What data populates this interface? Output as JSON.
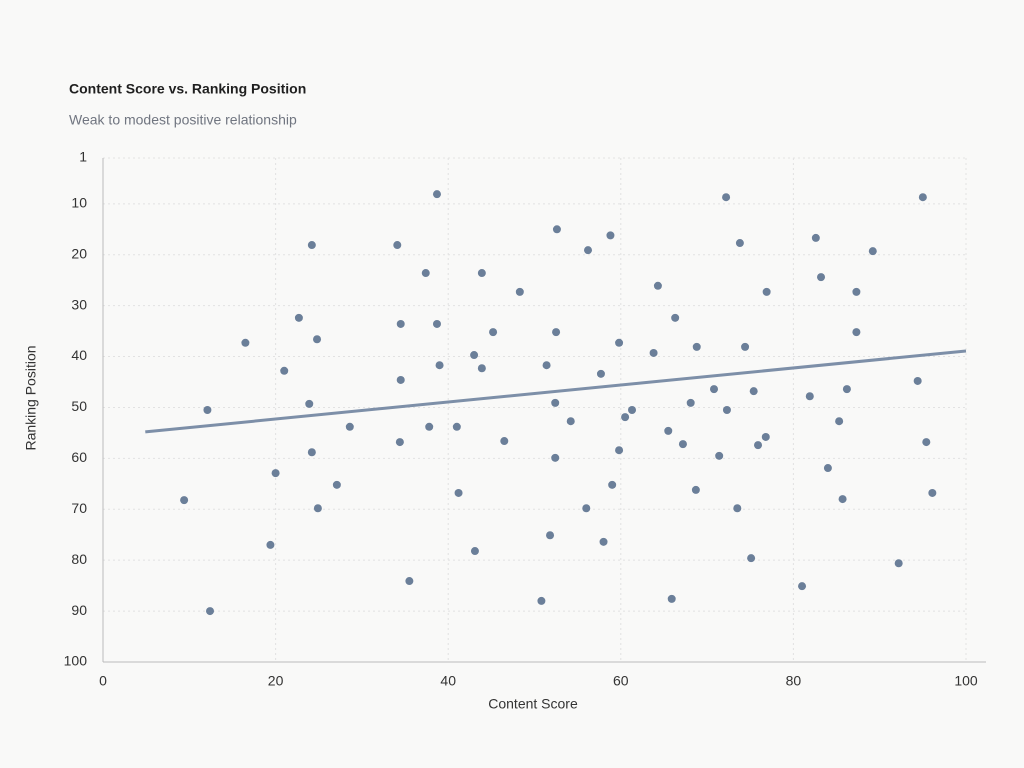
{
  "chart_data": {
    "type": "scatter",
    "title": "Content Score vs. Ranking Position",
    "subtitle": "Weak to modest positive relationship",
    "x_label": "Content Score",
    "y_label": "Ranking Position",
    "color": "#6b7f99",
    "grid": true,
    "y_inverted": true,
    "xlim": [
      0,
      100
    ],
    "xticks": [
      0,
      20,
      40,
      60,
      80,
      100
    ],
    "ylim": [
      1,
      100
    ],
    "yticks": [
      1,
      10,
      20,
      30,
      40,
      50,
      60,
      70,
      80,
      90,
      100
    ],
    "x": [
      9.4,
      12.1,
      12.4,
      16.5,
      19.4,
      20.0,
      21.0,
      22.7,
      23.9,
      24.2,
      24.2,
      24.8,
      24.9,
      27.1,
      28.6,
      34.1,
      34.5,
      34.5,
      34.4,
      35.5,
      37.4,
      37.8,
      38.7,
      38.7,
      39.0,
      41.0,
      41.2,
      43.0,
      43.1,
      43.9,
      43.9,
      45.2,
      46.5,
      48.3,
      50.8,
      51.4,
      51.8,
      52.4,
      52.5,
      52.4,
      52.6,
      54.2,
      56.0,
      56.2,
      57.7,
      58.0,
      58.8,
      59.0,
      59.8,
      59.8,
      60.5,
      61.3,
      63.8,
      64.3,
      65.5,
      65.9,
      66.3,
      67.2,
      68.1,
      68.7,
      68.8,
      70.8,
      71.4,
      72.2,
      72.3,
      73.5,
      73.8,
      74.4,
      75.1,
      75.4,
      75.9,
      76.8,
      76.9,
      81.0,
      81.9,
      82.6,
      83.2,
      84.0,
      85.3,
      85.7,
      86.2,
      87.3,
      87.3,
      89.2,
      92.2,
      94.4,
      95.0,
      95.4,
      96.1
    ],
    "y": [
      68.2,
      50.5,
      90.0,
      37.3,
      77.0,
      62.9,
      42.8,
      32.4,
      49.3,
      18.1,
      58.8,
      36.6,
      69.8,
      65.2,
      53.8,
      18.1,
      33.6,
      44.6,
      56.8,
      84.1,
      23.6,
      53.8,
      8.1,
      33.6,
      41.7,
      53.8,
      66.8,
      39.7,
      78.2,
      23.6,
      42.3,
      35.2,
      56.6,
      27.3,
      88.0,
      41.7,
      75.1,
      49.1,
      35.2,
      59.9,
      15.0,
      52.7,
      69.8,
      19.1,
      43.4,
      76.4,
      16.2,
      65.2,
      37.3,
      58.4,
      51.9,
      50.5,
      39.3,
      26.1,
      54.6,
      87.6,
      32.4,
      57.2,
      49.1,
      66.2,
      38.1,
      46.4,
      59.5,
      8.7,
      50.5,
      69.8,
      17.7,
      38.1,
      79.6,
      46.8,
      57.4,
      55.8,
      27.3,
      85.1,
      47.8,
      16.7,
      24.4,
      61.9,
      52.7,
      68.0,
      46.4,
      27.3,
      35.2,
      19.3,
      80.6,
      44.8,
      8.7,
      56.8,
      66.8
    ],
    "trendline": {
      "color": "#7d8fa8",
      "x": [
        4.9,
        100
      ],
      "y": [
        54.8,
        38.9
      ]
    }
  }
}
